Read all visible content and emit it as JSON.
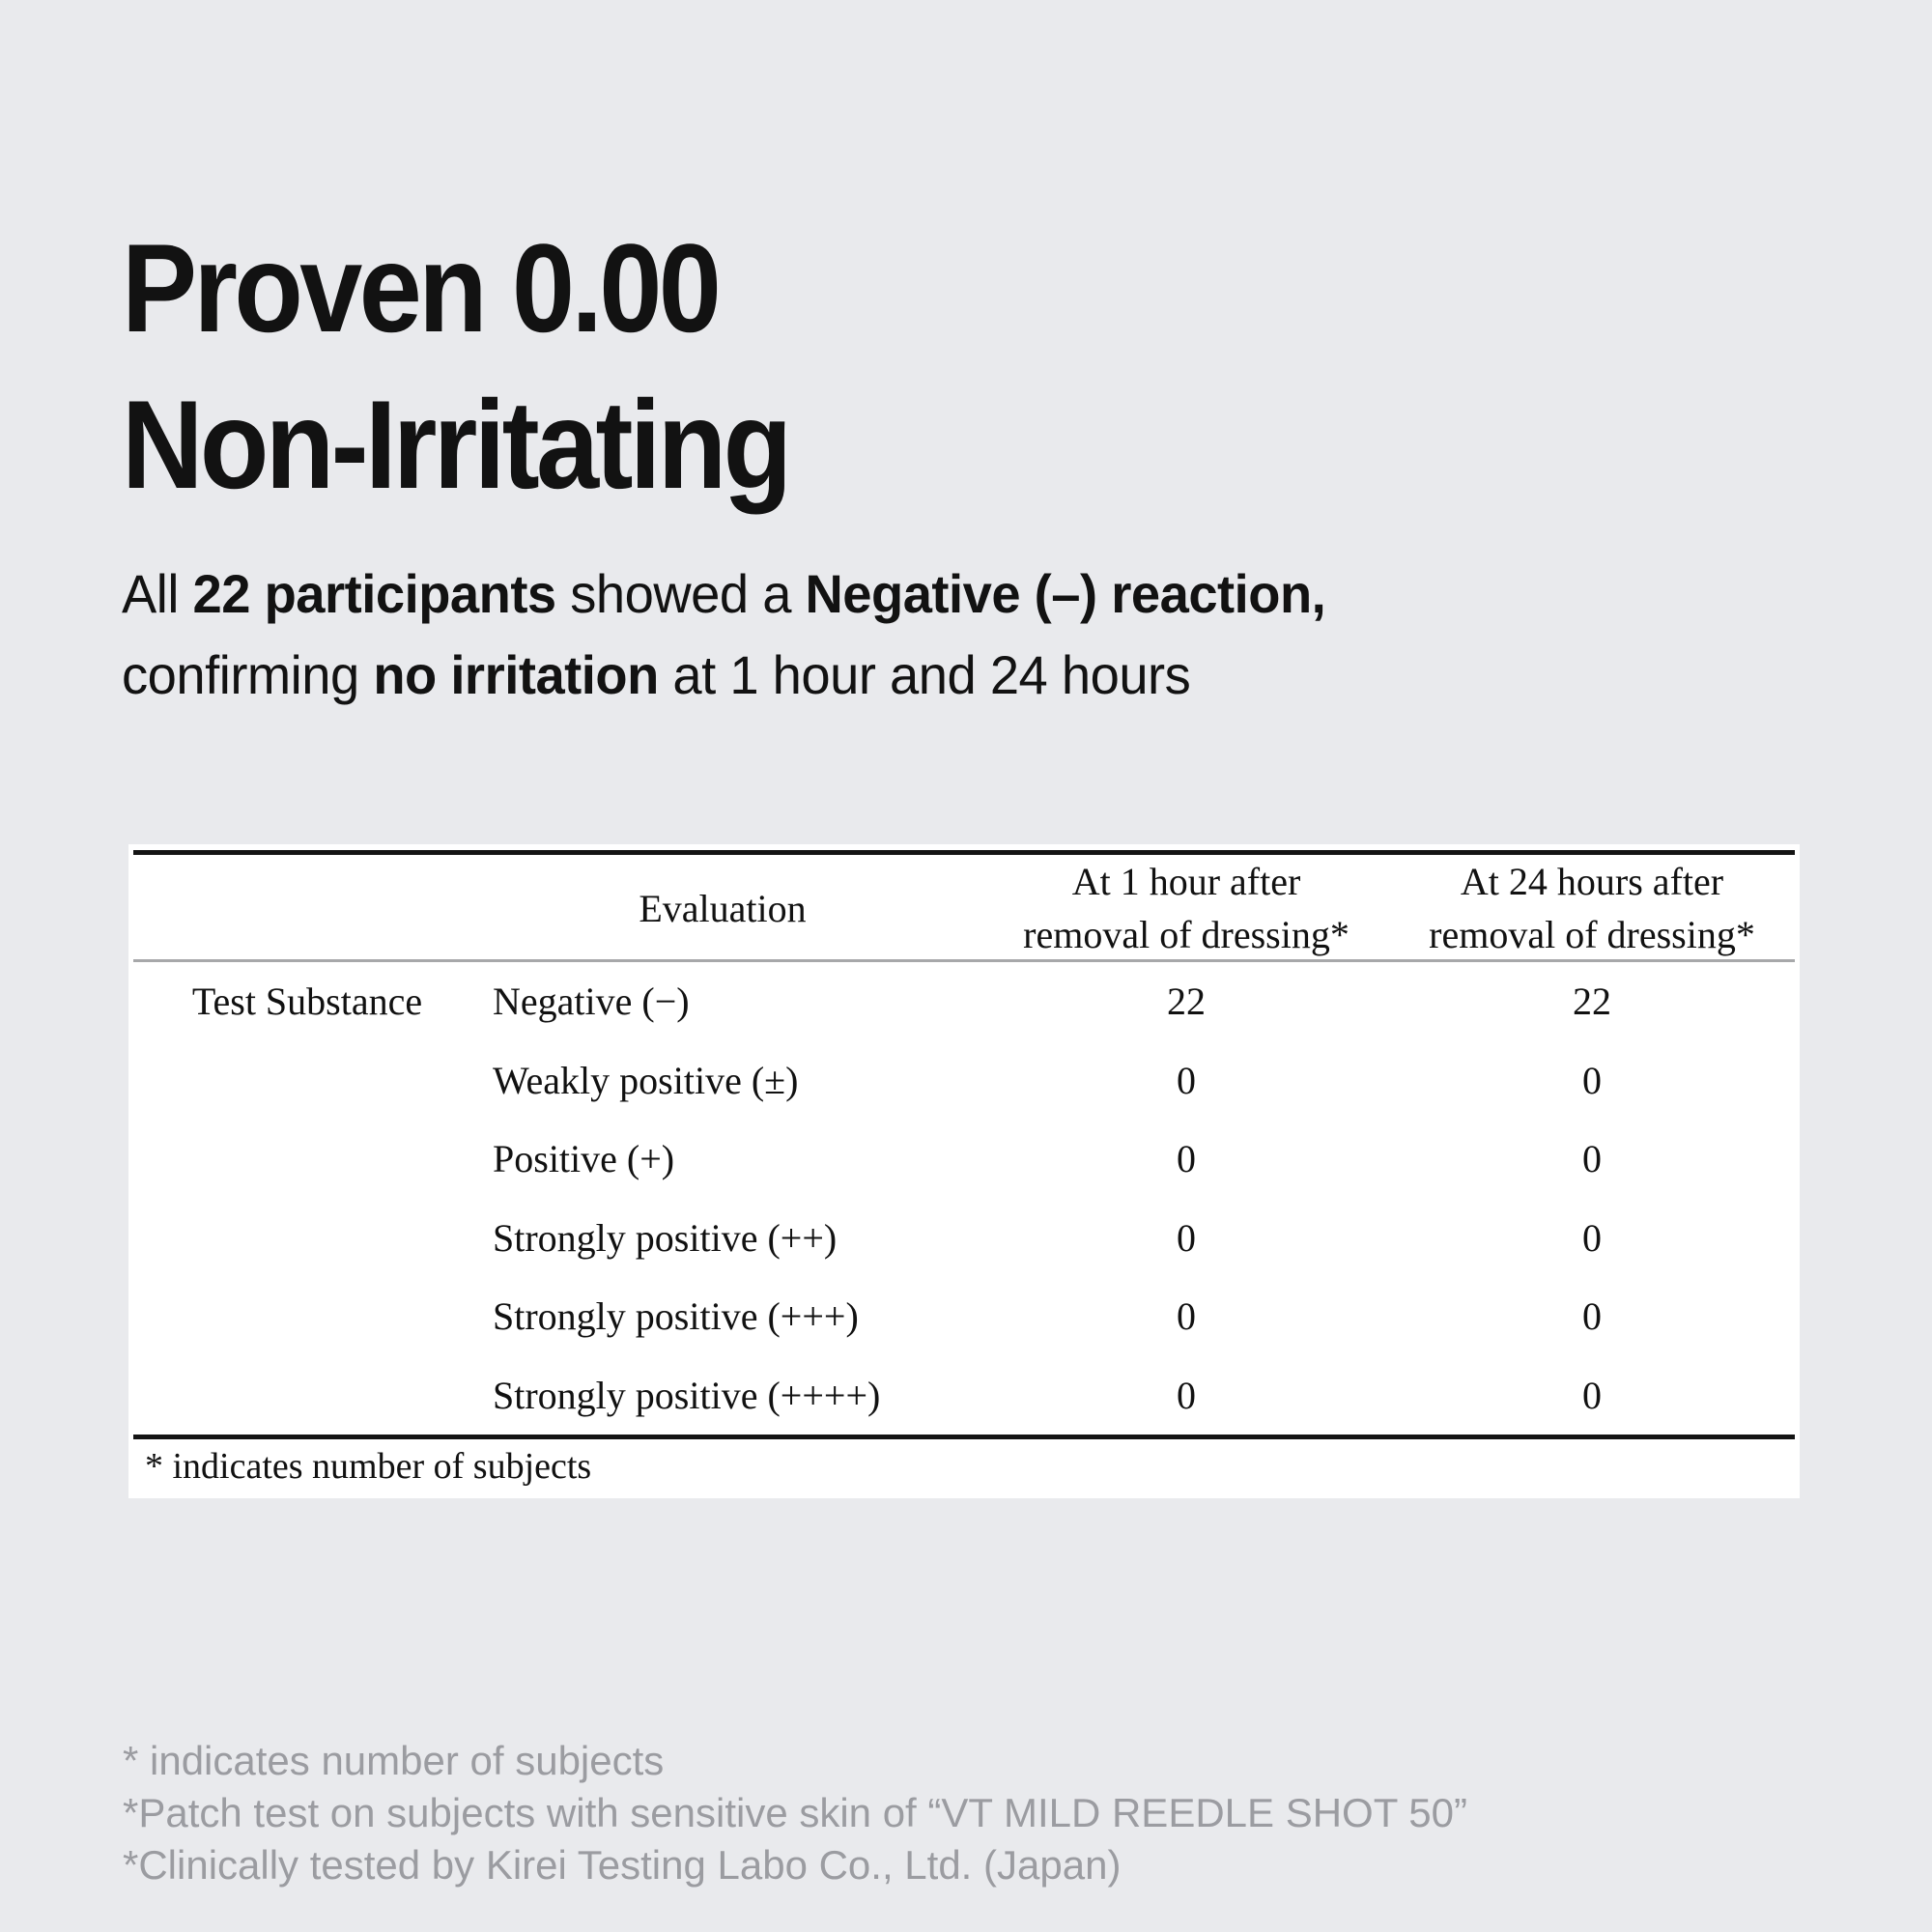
{
  "hero": {
    "title_line1": "Proven 0.00",
    "title_line2": "Non-Irritating",
    "subtitle_line1": [
      "All ",
      "22 participants",
      " showed a ",
      "Negative (–) reaction,"
    ],
    "subtitle_line2": [
      "confirming ",
      "no irritation",
      " at 1 hour and 24 hours"
    ]
  },
  "table": {
    "column_headers": {
      "evaluation": "Evaluation",
      "at_1_hour": {
        "line1": "At 1 hour after",
        "line2": "removal of dressing*"
      },
      "at_24_hours": {
        "line1": "At 24 hours after",
        "line2": "removal of dressing*"
      }
    },
    "row_label": "Test Substance",
    "rows": [
      {
        "evaluation": "Negative (−)",
        "at_1_hour": "22",
        "at_24_hours": "22"
      },
      {
        "evaluation": "Weakly positive (±)",
        "at_1_hour": "0",
        "at_24_hours": "0"
      },
      {
        "evaluation": "Positive (+)",
        "at_1_hour": "0",
        "at_24_hours": "0"
      },
      {
        "evaluation": "Strongly positive (++)",
        "at_1_hour": "0",
        "at_24_hours": "0"
      },
      {
        "evaluation": "Strongly positive (+++)",
        "at_1_hour": "0",
        "at_24_hours": "0"
      },
      {
        "evaluation": "Strongly positive (++++)",
        "at_1_hour": "0",
        "at_24_hours": "0"
      }
    ],
    "footnote": "* indicates number of subjects"
  },
  "footnotes": [
    "* indicates number of subjects",
    "*Patch test on subjects with sensitive skin of “VT MILD REEDLE SHOT 50”",
    "*Clinically tested by Kirei Testing Labo Co., Ltd. (Japan)"
  ],
  "colors": {
    "background": "#E9EAED",
    "panel_background": "#FFFFFF",
    "text": "#121212",
    "table_rule_black": "#141414",
    "table_rule_gray": "#A7A8AA",
    "footnote_gray": "#9B9CA1"
  }
}
